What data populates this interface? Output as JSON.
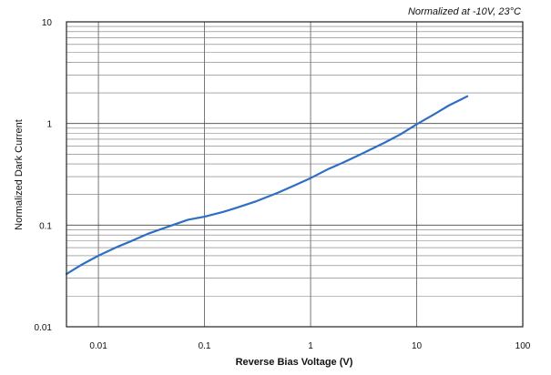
{
  "chart_data": {
    "type": "line",
    "annotation": "Normalized at -10V, 23°C",
    "xlabel": "Reverse Bias Voltage (V)",
    "ylabel": "Normalized Dark Current",
    "x_scale": "log",
    "y_scale": "log",
    "xlim": [
      0.005,
      100
    ],
    "ylim": [
      0.01,
      10
    ],
    "x_ticks": [
      {
        "value": 0.01,
        "label": "0.01"
      },
      {
        "value": 0.1,
        "label": "0.1"
      },
      {
        "value": 1,
        "label": "1"
      },
      {
        "value": 10,
        "label": "10"
      },
      {
        "value": 100,
        "label": "100"
      }
    ],
    "y_ticks": [
      {
        "value": 10,
        "label": "10"
      },
      {
        "value": 1,
        "label": "1"
      },
      {
        "value": 0.1,
        "label": "0.1"
      },
      {
        "value": 0.01,
        "label": "0.01"
      }
    ],
    "grid": true,
    "series": [
      {
        "color": "#2e6fc4",
        "points": [
          [
            0.005,
            0.033
          ],
          [
            0.007,
            0.041
          ],
          [
            0.01,
            0.05
          ],
          [
            0.015,
            0.061
          ],
          [
            0.02,
            0.069
          ],
          [
            0.03,
            0.083
          ],
          [
            0.05,
            0.1
          ],
          [
            0.07,
            0.113
          ],
          [
            0.1,
            0.121
          ],
          [
            0.15,
            0.135
          ],
          [
            0.2,
            0.148
          ],
          [
            0.3,
            0.17
          ],
          [
            0.5,
            0.21
          ],
          [
            0.7,
            0.245
          ],
          [
            1,
            0.29
          ],
          [
            1.5,
            0.36
          ],
          [
            2,
            0.41
          ],
          [
            3,
            0.5
          ],
          [
            5,
            0.65
          ],
          [
            7,
            0.78
          ],
          [
            10,
            0.98
          ],
          [
            15,
            1.25
          ],
          [
            20,
            1.5
          ],
          [
            30,
            1.85
          ]
        ]
      }
    ]
  }
}
